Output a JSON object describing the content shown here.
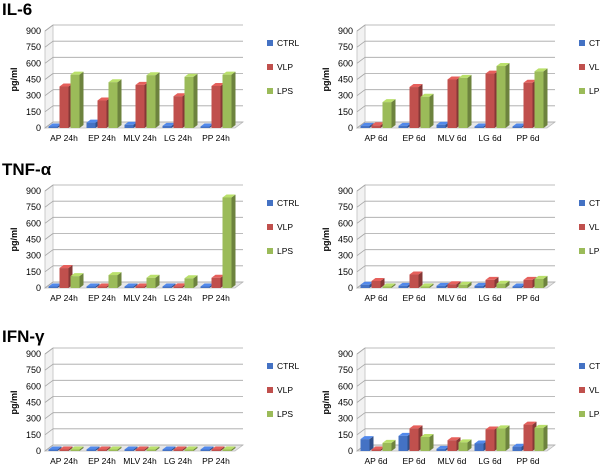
{
  "row_titles": [
    "IL-6",
    "TNF-α",
    "IFN-γ"
  ],
  "colors": {
    "CTRL": "#4472c4",
    "VLP": "#c0504d",
    "LPS": "#9bbb59"
  },
  "chart_data": [
    {
      "type": "bar",
      "panel": "IL-6 24h",
      "ylabel": "pg/ml",
      "ylim": [
        0,
        900
      ],
      "yticks": [
        0,
        150,
        300,
        450,
        600,
        750,
        900
      ],
      "categories": [
        "AP 24h",
        "EP 24h",
        "MLV 24h",
        "LG 24h",
        "PP 24h"
      ],
      "legend": "right",
      "series": [
        {
          "name": "CTRL",
          "values": [
            5,
            50,
            30,
            20,
            10
          ]
        },
        {
          "name": "VLP",
          "values": [
            385,
            255,
            400,
            295,
            390
          ]
        },
        {
          "name": "LPS",
          "values": [
            495,
            425,
            490,
            475,
            495
          ]
        }
      ]
    },
    {
      "type": "bar",
      "panel": "IL-6 6d",
      "ylabel": "pg/ml",
      "ylim": [
        0,
        900
      ],
      "yticks": [
        0,
        150,
        300,
        450,
        600,
        750,
        900
      ],
      "categories": [
        "AP 6d",
        "EP 6d",
        "MLV 6d",
        "LG 6d",
        "PP 6d"
      ],
      "legend": "right",
      "series": [
        {
          "name": "CTRL",
          "values": [
            20,
            20,
            30,
            5,
            5
          ]
        },
        {
          "name": "VLP",
          "values": [
            25,
            380,
            450,
            505,
            420
          ]
        },
        {
          "name": "LPS",
          "values": [
            240,
            290,
            465,
            575,
            525
          ]
        }
      ]
    },
    {
      "type": "bar",
      "panel": "TNF-α 24h",
      "ylabel": "pg/ml",
      "ylim": [
        0,
        900
      ],
      "yticks": [
        0,
        150,
        300,
        450,
        600,
        750,
        900
      ],
      "categories": [
        "AP 24h",
        "EP 24h",
        "MLV 24h",
        "LG 24h",
        "PP 24h"
      ],
      "legend": "right",
      "series": [
        {
          "name": "CTRL",
          "values": [
            5,
            5,
            5,
            5,
            5
          ]
        },
        {
          "name": "VLP",
          "values": [
            185,
            5,
            5,
            15,
            95
          ]
        },
        {
          "name": "LPS",
          "values": [
            110,
            120,
            95,
            90,
            840
          ]
        }
      ]
    },
    {
      "type": "bar",
      "panel": "TNF-α 6d",
      "ylabel": "pg/ml",
      "ylim": [
        0,
        900
      ],
      "yticks": [
        0,
        150,
        300,
        450,
        600,
        750,
        900
      ],
      "categories": [
        "AP 6d",
        "EP 6d",
        "MLV 6d",
        "LG 6d",
        "PP 6d"
      ],
      "legend": "right",
      "series": [
        {
          "name": "CTRL",
          "values": [
            30,
            20,
            20,
            20,
            10
          ]
        },
        {
          "name": "VLP",
          "values": [
            65,
            125,
            35,
            75,
            75
          ]
        },
        {
          "name": "LPS",
          "values": [
            5,
            5,
            30,
            40,
            85
          ]
        }
      ]
    },
    {
      "type": "bar",
      "panel": "IFN-γ 24h",
      "ylabel": "pg/ml",
      "ylim": [
        0,
        900
      ],
      "yticks": [
        0,
        150,
        300,
        450,
        600,
        750,
        900
      ],
      "categories": [
        "AP 24h",
        "EP 24h",
        "MLV 24h",
        "LG 24h",
        "PP 24h"
      ],
      "legend": "right",
      "series": [
        {
          "name": "CTRL",
          "values": [
            2,
            2,
            2,
            2,
            2
          ]
        },
        {
          "name": "VLP",
          "values": [
            2,
            2,
            2,
            2,
            2
          ]
        },
        {
          "name": "LPS",
          "values": [
            2,
            2,
            2,
            2,
            2
          ]
        }
      ]
    },
    {
      "type": "bar",
      "panel": "IFN-γ 6d",
      "ylabel": "pg/ml",
      "ylim": [
        0,
        900
      ],
      "yticks": [
        0,
        150,
        300,
        450,
        600,
        750,
        900
      ],
      "categories": [
        "AP 6d",
        "EP 6d",
        "MLV 6d",
        "LG 6d",
        "PP 6d"
      ],
      "legend": "right",
      "series": [
        {
          "name": "CTRL",
          "values": [
            110,
            140,
            20,
            70,
            40
          ]
        },
        {
          "name": "VLP",
          "values": [
            5,
            210,
            100,
            200,
            245
          ]
        },
        {
          "name": "LPS",
          "values": [
            75,
            130,
            80,
            210,
            215
          ]
        }
      ]
    }
  ]
}
